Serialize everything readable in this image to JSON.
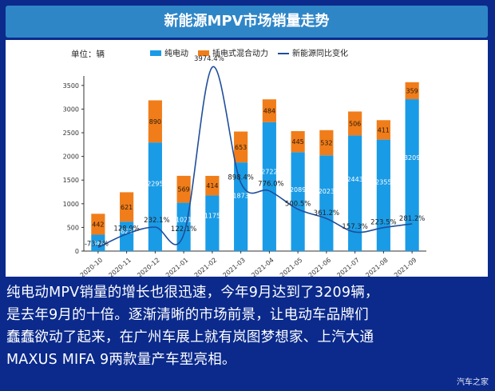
{
  "title": "新能源MPV市场销量走势",
  "chart_data": {
    "type": "bar",
    "stacked": true,
    "unit_label": "单位：辆",
    "categories": [
      "2020-10",
      "2020-11",
      "2020-12",
      "2021-01",
      "2021-02",
      "2021-03",
      "2021-04",
      "2021-05",
      "2021-06",
      "2021-07",
      "2021-08",
      "2021-09"
    ],
    "series": [
      {
        "name": "纯电动",
        "color": "#1a9be6",
        "values": [
          346,
          622,
          2295,
          1021,
          1175,
          1873,
          2722,
          2089,
          2023,
          2443,
          2355,
          3209
        ],
        "value_labels": [
          "346",
          "622",
          "2295",
          "1021",
          "1175",
          "1873",
          "2722",
          "2089",
          "2023",
          "2443",
          "2355",
          "3209"
        ]
      },
      {
        "name": "插电式混合动力",
        "color": "#f07d1a",
        "values": [
          442,
          621,
          890,
          569,
          414,
          653,
          484,
          445,
          532,
          506,
          411,
          359
        ],
        "value_labels": [
          "442",
          "621",
          "890",
          "569",
          "414",
          "653",
          "484",
          "445",
          "532",
          "506",
          "411",
          "359"
        ]
      }
    ],
    "line_series": {
      "name": "新能源同比变化",
      "color": "#1f4e9c",
      "values": [
        -73.2,
        128.9,
        232.1,
        122.1,
        3974.4,
        898.4,
        776.0,
        500.5,
        361.2,
        157.3,
        223.5,
        281.2
      ],
      "labels": [
        "-73.2%",
        "128.9%",
        "232.1%",
        "122.1%",
        "3974.4%",
        "898.4%",
        "776.0%",
        "500.5%",
        "361.2%",
        "157.3%",
        "223.5%",
        "281.2%"
      ]
    },
    "y_ticks": [
      0,
      500,
      1000,
      1500,
      2000,
      2500,
      3000,
      3500
    ],
    "ylim": [
      0,
      3700
    ],
    "legend_position": "top-center"
  },
  "caption_lines": [
    "纯电动MPV销量的增长也很迅速，今年9月达到了3209辆，",
    "是去年9月的十倍。逐渐清晰的市场前景，让电动车品牌们",
    "蠢蠢欲动了起来，在广州车展上就有岚图梦想家、上汽大通",
    "MAXUS MIFA 9两款量产车型亮相。"
  ],
  "watermark": "汽车之家"
}
